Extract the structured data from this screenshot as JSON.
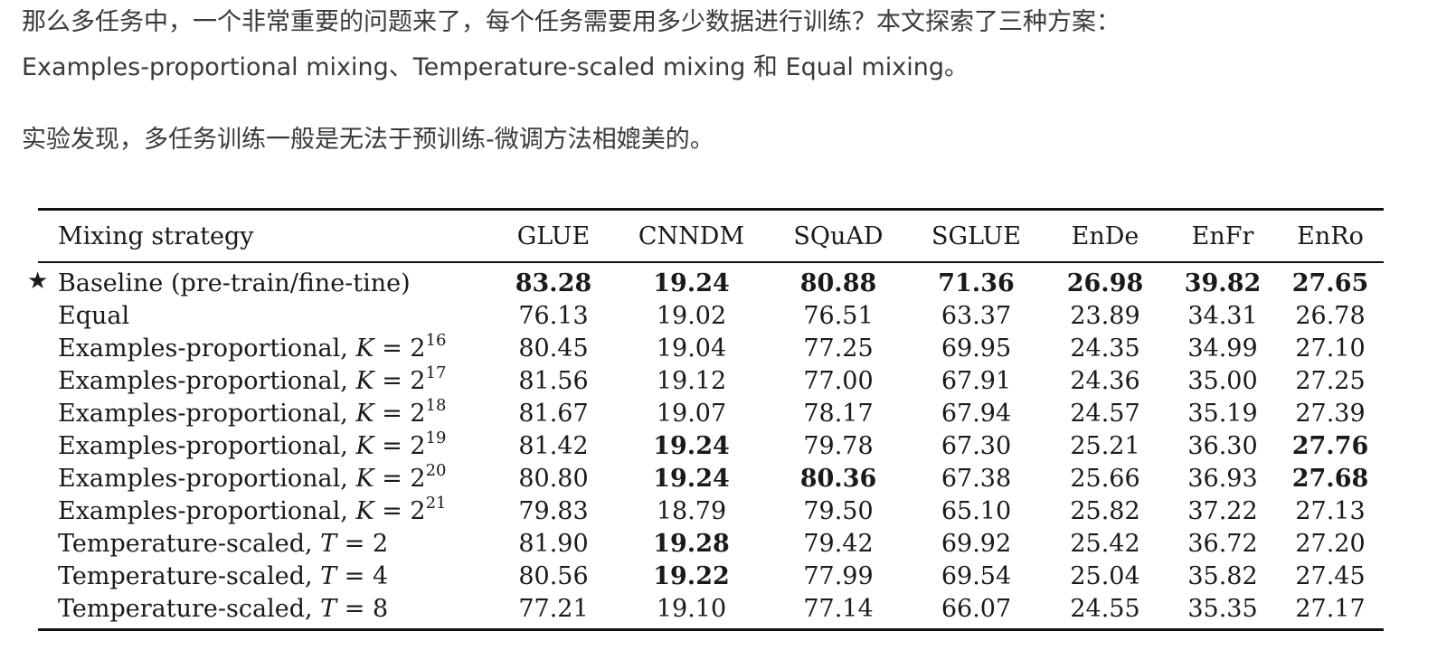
{
  "text": {
    "para1_line1": "那么多任务中，一个非常重要的问题来了，每个任务需要用多少数据进行训练？本文探索了三种方案：",
    "para1_line2": "Examples-proportional mixing、Temperature-scaled mixing 和 Equal mixing。",
    "para2": "实验发现，多任务训练一般是无法于预训练-微调方法相媲美的。"
  },
  "table": {
    "headers": [
      "Mixing strategy",
      "GLUE",
      "CNNDM",
      "SQuAD",
      "SGLUE",
      "EnDe",
      "EnFr",
      "EnRo"
    ],
    "rows": [
      {
        "star": "★",
        "label": "Baseline (pre-train/fine-tine)",
        "var": "",
        "eq": "",
        "base": "",
        "exp": "",
        "values": [
          "83.28",
          "19.24",
          "80.88",
          "71.36",
          "26.98",
          "39.82",
          "27.65"
        ],
        "bold": [
          true,
          true,
          true,
          true,
          true,
          true,
          true
        ]
      },
      {
        "star": "",
        "label": "Equal",
        "var": "",
        "eq": "",
        "base": "",
        "exp": "",
        "values": [
          "76.13",
          "19.02",
          "76.51",
          "63.37",
          "23.89",
          "34.31",
          "26.78"
        ],
        "bold": [
          false,
          false,
          false,
          false,
          false,
          false,
          false
        ]
      },
      {
        "star": "",
        "label": "Examples-proportional, ",
        "var": "K",
        "eq": " = ",
        "base": "2",
        "exp": "16",
        "values": [
          "80.45",
          "19.04",
          "77.25",
          "69.95",
          "24.35",
          "34.99",
          "27.10"
        ],
        "bold": [
          false,
          false,
          false,
          false,
          false,
          false,
          false
        ]
      },
      {
        "star": "",
        "label": "Examples-proportional, ",
        "var": "K",
        "eq": " = ",
        "base": "2",
        "exp": "17",
        "values": [
          "81.56",
          "19.12",
          "77.00",
          "67.91",
          "24.36",
          "35.00",
          "27.25"
        ],
        "bold": [
          false,
          false,
          false,
          false,
          false,
          false,
          false
        ]
      },
      {
        "star": "",
        "label": "Examples-proportional, ",
        "var": "K",
        "eq": " = ",
        "base": "2",
        "exp": "18",
        "values": [
          "81.67",
          "19.07",
          "78.17",
          "67.94",
          "24.57",
          "35.19",
          "27.39"
        ],
        "bold": [
          false,
          false,
          false,
          false,
          false,
          false,
          false
        ]
      },
      {
        "star": "",
        "label": "Examples-proportional, ",
        "var": "K",
        "eq": " = ",
        "base": "2",
        "exp": "19",
        "values": [
          "81.42",
          "19.24",
          "79.78",
          "67.30",
          "25.21",
          "36.30",
          "27.76"
        ],
        "bold": [
          false,
          true,
          false,
          false,
          false,
          false,
          true
        ]
      },
      {
        "star": "",
        "label": "Examples-proportional, ",
        "var": "K",
        "eq": " = ",
        "base": "2",
        "exp": "20",
        "values": [
          "80.80",
          "19.24",
          "80.36",
          "67.38",
          "25.66",
          "36.93",
          "27.68"
        ],
        "bold": [
          false,
          true,
          true,
          false,
          false,
          false,
          true
        ]
      },
      {
        "star": "",
        "label": "Examples-proportional, ",
        "var": "K",
        "eq": " = ",
        "base": "2",
        "exp": "21",
        "values": [
          "79.83",
          "18.79",
          "79.50",
          "65.10",
          "25.82",
          "37.22",
          "27.13"
        ],
        "bold": [
          false,
          false,
          false,
          false,
          false,
          false,
          false
        ]
      },
      {
        "star": "",
        "label": "Temperature-scaled, ",
        "var": "T",
        "eq": " = ",
        "base": "2",
        "exp": "",
        "values": [
          "81.90",
          "19.28",
          "79.42",
          "69.92",
          "25.42",
          "36.72",
          "27.20"
        ],
        "bold": [
          false,
          true,
          false,
          false,
          false,
          false,
          false
        ]
      },
      {
        "star": "",
        "label": "Temperature-scaled, ",
        "var": "T",
        "eq": " = ",
        "base": "4",
        "exp": "",
        "values": [
          "80.56",
          "19.22",
          "77.99",
          "69.54",
          "25.04",
          "35.82",
          "27.45"
        ],
        "bold": [
          false,
          true,
          false,
          false,
          false,
          false,
          false
        ]
      },
      {
        "star": "",
        "label": "Temperature-scaled, ",
        "var": "T",
        "eq": " = ",
        "base": "8",
        "exp": "",
        "values": [
          "77.21",
          "19.10",
          "77.14",
          "66.07",
          "24.55",
          "35.35",
          "27.17"
        ],
        "bold": [
          false,
          false,
          false,
          false,
          false,
          false,
          false
        ]
      }
    ]
  }
}
